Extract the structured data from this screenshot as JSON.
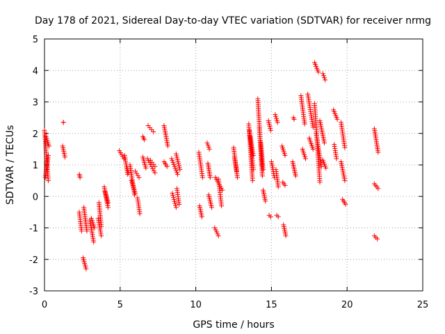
{
  "chart_data": {
    "type": "scatter",
    "title": "Day 178 of 2021, Sidereal Day-to-day VTEC variation (SDTVAR) for receiver nrmg",
    "xlabel": "GPS time / hours",
    "ylabel": "SDTVAR / TECUs",
    "xlim": [
      0,
      25
    ],
    "ylim": [
      -3,
      5
    ],
    "xticks": [
      0,
      5,
      10,
      15,
      20,
      25
    ],
    "yticks": [
      -3,
      -2,
      -1,
      0,
      1,
      2,
      3,
      4,
      5
    ],
    "grid": true,
    "marker": "+",
    "color": "#ff0000",
    "series": [
      {
        "name": "SDTVAR",
        "segments": [
          {
            "x": [
              0.0,
              0.25
            ],
            "y": [
              2.1,
              0.5
            ]
          },
          {
            "x": [
              0.05,
              0.25
            ],
            "y": [
              0.6,
              1.3
            ]
          },
          {
            "x": [
              0.1,
              0.3
            ],
            "y": [
              1.9,
              1.6
            ]
          },
          {
            "x": [
              1.2,
              1.35
            ],
            "y": [
              1.6,
              1.25
            ]
          },
          {
            "x": [
              1.25,
              1.25
            ],
            "y": [
              2.35,
              2.35
            ]
          },
          {
            "x": [
              2.3,
              2.35
            ],
            "y": [
              0.7,
              0.6
            ]
          },
          {
            "x": [
              2.3,
              2.45
            ],
            "y": [
              -0.5,
              -1.1
            ]
          },
          {
            "x": [
              2.55,
              2.75
            ],
            "y": [
              -1.95,
              -2.3
            ]
          },
          {
            "x": [
              2.6,
              2.8
            ],
            "y": [
              -0.35,
              -1.1
            ]
          },
          {
            "x": [
              3.0,
              3.25
            ],
            "y": [
              -0.75,
              -1.45
            ]
          },
          {
            "x": [
              3.1,
              3.3
            ],
            "y": [
              -0.7,
              -1.0
            ]
          },
          {
            "x": [
              3.55,
              3.75
            ],
            "y": [
              -0.7,
              -1.25
            ]
          },
          {
            "x": [
              3.6,
              3.75
            ],
            "y": [
              -0.2,
              -0.95
            ]
          },
          {
            "x": [
              3.95,
              4.2
            ],
            "y": [
              0.3,
              -0.35
            ]
          },
          {
            "x": [
              4.0,
              4.2
            ],
            "y": [
              0.15,
              -0.2
            ]
          },
          {
            "x": [
              4.95,
              5.25
            ],
            "y": [
              1.45,
              1.2
            ]
          },
          {
            "x": [
              5.3,
              5.5
            ],
            "y": [
              1.3,
              0.7
            ]
          },
          {
            "x": [
              5.4,
              5.55
            ],
            "y": [
              1.0,
              0.75
            ]
          },
          {
            "x": [
              5.65,
              5.95
            ],
            "y": [
              1.0,
              0.05
            ]
          },
          {
            "x": [
              5.75,
              6.0
            ],
            "y": [
              0.5,
              0.1
            ]
          },
          {
            "x": [
              6.0,
              6.25
            ],
            "y": [
              0.8,
              0.6
            ]
          },
          {
            "x": [
              6.15,
              6.3
            ],
            "y": [
              -0.05,
              -0.55
            ]
          },
          {
            "x": [
              6.5,
              6.6
            ],
            "y": [
              1.9,
              1.8
            ]
          },
          {
            "x": [
              6.5,
              6.7
            ],
            "y": [
              1.25,
              0.9
            ]
          },
          {
            "x": [
              6.85,
              7.2
            ],
            "y": [
              2.25,
              2.05
            ]
          },
          {
            "x": [
              6.8,
              7.3
            ],
            "y": [
              1.2,
              0.75
            ]
          },
          {
            "x": [
              7.0,
              7.3
            ],
            "y": [
              1.15,
              0.95
            ]
          },
          {
            "x": [
              7.9,
              8.15
            ],
            "y": [
              2.25,
              1.6
            ]
          },
          {
            "x": [
              7.9,
              8.1
            ],
            "y": [
              1.1,
              0.95
            ]
          },
          {
            "x": [
              8.4,
              8.8
            ],
            "y": [
              1.2,
              0.7
            ]
          },
          {
            "x": [
              8.45,
              8.7
            ],
            "y": [
              0.1,
              -0.35
            ]
          },
          {
            "x": [
              8.7,
              8.95
            ],
            "y": [
              1.35,
              0.85
            ]
          },
          {
            "x": [
              8.75,
              8.9
            ],
            "y": [
              0.25,
              -0.25
            ]
          },
          {
            "x": [
              10.2,
              10.45
            ],
            "y": [
              1.4,
              0.6
            ]
          },
          {
            "x": [
              10.25,
              10.4
            ],
            "y": [
              -0.3,
              -0.65
            ]
          },
          {
            "x": [
              10.75,
              10.9
            ],
            "y": [
              1.7,
              1.5
            ]
          },
          {
            "x": [
              10.8,
              10.95
            ],
            "y": [
              1.05,
              0.6
            ]
          },
          {
            "x": [
              10.85,
              11.05
            ],
            "y": [
              0.05,
              -0.35
            ]
          },
          {
            "x": [
              11.25,
              11.5
            ],
            "y": [
              -1.0,
              -1.25
            ]
          },
          {
            "x": [
              11.3,
              11.75
            ],
            "y": [
              0.6,
              0.2
            ]
          },
          {
            "x": [
              11.5,
              11.7
            ],
            "y": [
              0.55,
              -0.3
            ]
          },
          {
            "x": [
              12.5,
              12.75
            ],
            "y": [
              1.55,
              0.6
            ]
          },
          {
            "x": [
              12.55,
              12.7
            ],
            "y": [
              1.25,
              0.8
            ]
          },
          {
            "x": [
              13.5,
              13.75
            ],
            "y": [
              2.3,
              0.5
            ]
          },
          {
            "x": [
              13.55,
              13.8
            ],
            "y": [
              2.1,
              0.85
            ]
          },
          {
            "x": [
              13.6,
              13.8
            ],
            "y": [
              1.9,
              1.3
            ]
          },
          {
            "x": [
              14.1,
              14.35
            ],
            "y": [
              3.1,
              1.0
            ]
          },
          {
            "x": [
              14.2,
              14.4
            ],
            "y": [
              2.2,
              0.65
            ]
          },
          {
            "x": [
              14.3,
              14.45
            ],
            "y": [
              1.7,
              0.85
            ]
          },
          {
            "x": [
              14.45,
              14.6
            ],
            "y": [
              0.2,
              -0.15
            ]
          },
          {
            "x": [
              14.8,
              14.95
            ],
            "y": [
              2.4,
              2.1
            ]
          },
          {
            "x": [
              14.85,
              14.95
            ],
            "y": [
              -0.6,
              -0.65
            ]
          },
          {
            "x": [
              15.0,
              15.2
            ],
            "y": [
              1.1,
              0.6
            ]
          },
          {
            "x": [
              15.25,
              15.4
            ],
            "y": [
              2.6,
              2.35
            ]
          },
          {
            "x": [
              15.3,
              15.45
            ],
            "y": [
              0.85,
              0.3
            ]
          },
          {
            "x": [
              15.35,
              15.45
            ],
            "y": [
              -0.6,
              -0.65
            ]
          },
          {
            "x": [
              15.7,
              15.9
            ],
            "y": [
              1.6,
              1.3
            ]
          },
          {
            "x": [
              15.75,
              15.9
            ],
            "y": [
              0.45,
              0.35
            ]
          },
          {
            "x": [
              15.8,
              15.95
            ],
            "y": [
              -0.9,
              -1.25
            ]
          },
          {
            "x": [
              16.4,
              16.6
            ],
            "y": [
              1.1,
              0.65
            ]
          },
          {
            "x": [
              16.45,
              16.5
            ],
            "y": [
              2.5,
              2.45
            ]
          },
          {
            "x": [
              16.95,
              17.2
            ],
            "y": [
              3.2,
              2.3
            ]
          },
          {
            "x": [
              17.05,
              17.25
            ],
            "y": [
              1.5,
              1.2
            ]
          },
          {
            "x": [
              17.4,
              17.75
            ],
            "y": [
              3.25,
              2.2
            ]
          },
          {
            "x": [
              17.5,
              17.75
            ],
            "y": [
              1.85,
              1.5
            ]
          },
          {
            "x": [
              17.85,
              18.1
            ],
            "y": [
              4.25,
              3.95
            ]
          },
          {
            "x": [
              17.85,
              18.2
            ],
            "y": [
              2.95,
              0.45
            ]
          },
          {
            "x": [
              17.95,
              18.3
            ],
            "y": [
              2.0,
              0.95
            ]
          },
          {
            "x": [
              18.2,
              18.5
            ],
            "y": [
              2.4,
              1.7
            ]
          },
          {
            "x": [
              18.4,
              18.55
            ],
            "y": [
              3.9,
              3.7
            ]
          },
          {
            "x": [
              18.4,
              18.6
            ],
            "y": [
              1.15,
              0.9
            ]
          },
          {
            "x": [
              19.1,
              19.35
            ],
            "y": [
              2.75,
              2.45
            ]
          },
          {
            "x": [
              19.15,
              19.3
            ],
            "y": [
              1.65,
              1.2
            ]
          },
          {
            "x": [
              19.6,
              19.85
            ],
            "y": [
              2.35,
              1.55
            ]
          },
          {
            "x": [
              19.6,
              19.85
            ],
            "y": [
              1.1,
              0.5
            ]
          },
          {
            "x": [
              19.7,
              19.9
            ],
            "y": [
              -0.1,
              -0.25
            ]
          },
          {
            "x": [
              21.8,
              22.05
            ],
            "y": [
              2.15,
              1.4
            ]
          },
          {
            "x": [
              21.8,
              22.05
            ],
            "y": [
              0.4,
              0.25
            ]
          },
          {
            "x": [
              21.8,
              22.0
            ],
            "y": [
              -1.25,
              -1.35
            ]
          }
        ]
      }
    ]
  }
}
